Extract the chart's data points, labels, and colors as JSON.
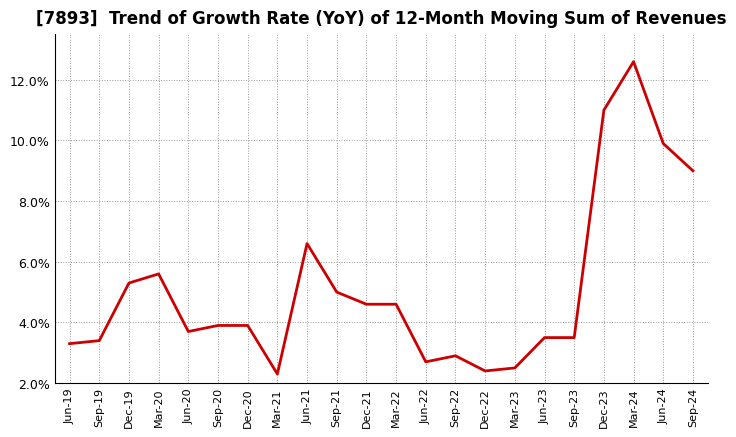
{
  "title": "[7893]  Trend of Growth Rate (YoY) of 12-Month Moving Sum of Revenues",
  "title_fontsize": 12,
  "line_color": "#CC0000",
  "line_width": 2.0,
  "background_color": "#FFFFFF",
  "plot_bg_color": "#FFFFFF",
  "grid_color": "#999999",
  "grid_linestyle": ":",
  "ylim": [
    0.02,
    0.135
  ],
  "yticks": [
    0.02,
    0.04,
    0.06,
    0.08,
    0.1,
    0.12
  ],
  "x_labels": [
    "Jun-19",
    "Sep-19",
    "Dec-19",
    "Mar-20",
    "Jun-20",
    "Sep-20",
    "Dec-20",
    "Mar-21",
    "Jun-21",
    "Sep-21",
    "Dec-21",
    "Mar-22",
    "Jun-22",
    "Sep-22",
    "Dec-22",
    "Mar-23",
    "Jun-23",
    "Sep-23",
    "Dec-23",
    "Mar-24",
    "Jun-24",
    "Sep-24"
  ],
  "y_values": [
    0.033,
    0.034,
    0.053,
    0.056,
    0.037,
    0.039,
    0.039,
    0.023,
    0.066,
    0.05,
    0.046,
    0.046,
    0.027,
    0.029,
    0.024,
    0.025,
    0.035,
    0.035,
    0.11,
    0.126,
    0.099,
    0.09
  ]
}
